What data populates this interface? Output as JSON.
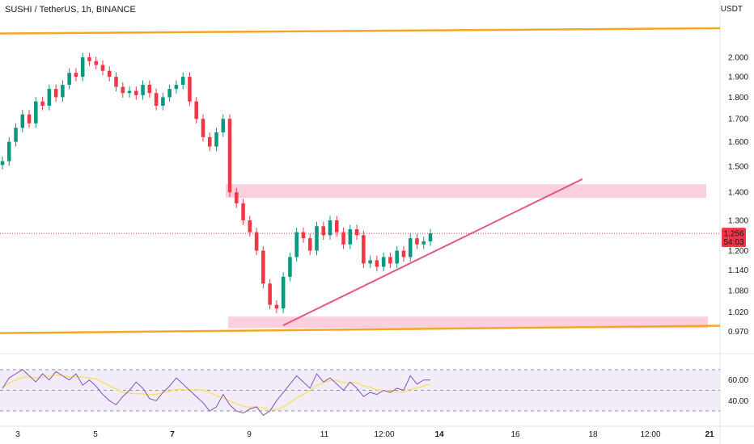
{
  "header": {
    "title": "SUSHI / TetherUS, 1h, BINANCE",
    "unit": "USDT"
  },
  "price_tag": {
    "price": "1.256",
    "countdown": "54:03",
    "color": "#f23645"
  },
  "colors": {
    "up": "#089981",
    "down": "#f23645",
    "channel": "#f5a623",
    "zone": "#f8bbd0",
    "trendline": "#e5568a",
    "rsi_line": "#7e57c2",
    "rsi_ma": "#f7e36e",
    "rsi_band": "#ede7f6"
  },
  "chart_data": [
    {
      "type": "line",
      "title": "SUSHI / TetherUS, 1h, BINANCE",
      "ylabel": "USDT",
      "y_scale": "log",
      "y_ticks": [
        "2.000",
        "1.900",
        "1.800",
        "1.700",
        "1.600",
        "1.500",
        "1.400",
        "1.300",
        "1.200",
        "1.140",
        "1.080",
        "1.020",
        "0.970"
      ],
      "x_ticks": [
        "3",
        "5",
        "7",
        "9",
        "11",
        "12:00",
        "14",
        "16",
        "18",
        "12:00",
        "21"
      ],
      "last_price": 1.256,
      "series": [
        {
          "name": "",
          "type": "candlestick-close",
          "x": [
            "2 20:00",
            "3 00:00",
            "3 04:00",
            "3 08:00",
            "3 12:00",
            "3 16:00",
            "3 20:00",
            "4 00:00",
            "4 04:00",
            "4 08:00",
            "4 12:00",
            "4 16:00",
            "4 20:00",
            "5 00:00",
            "5 04:00",
            "5 08:00",
            "5 12:00",
            "5 16:00",
            "5 20:00",
            "6 00:00",
            "6 04:00",
            "6 08:00",
            "6 12:00",
            "6 16:00",
            "6 20:00",
            "7 00:00",
            "7 04:00",
            "7 08:00",
            "7 12:00",
            "7 16:00",
            "7 20:00",
            "8 00:00",
            "8 04:00",
            "8 08:00",
            "8 12:00",
            "8 16:00",
            "8 20:00",
            "9 00:00",
            "9 04:00",
            "9 08:00",
            "9 12:00",
            "9 16:00",
            "9 20:00",
            "10 00:00",
            "10 04:00",
            "10 08:00",
            "10 12:00",
            "10 16:00",
            "10 20:00",
            "11 00:00",
            "11 04:00",
            "11 08:00",
            "11 12:00",
            "11 16:00",
            "11 20:00",
            "12 00:00",
            "12 04:00",
            "12 08:00",
            "12 12:00",
            "12 16:00",
            "12 20:00",
            "13 00:00",
            "13 04:00",
            "13 08:00",
            "13 12:00"
          ],
          "values": [
            1.52,
            1.6,
            1.66,
            1.72,
            1.68,
            1.78,
            1.76,
            1.84,
            1.8,
            1.86,
            1.92,
            1.9,
            2.0,
            1.98,
            1.96,
            1.93,
            1.9,
            1.85,
            1.82,
            1.83,
            1.81,
            1.86,
            1.82,
            1.76,
            1.8,
            1.84,
            1.86,
            1.9,
            1.78,
            1.7,
            1.62,
            1.58,
            1.64,
            1.7,
            1.4,
            1.36,
            1.3,
            1.26,
            1.2,
            1.1,
            1.04,
            1.03,
            1.12,
            1.18,
            1.26,
            1.24,
            1.2,
            1.28,
            1.25,
            1.3,
            1.26,
            1.22,
            1.27,
            1.25,
            1.16,
            1.17,
            1.15,
            1.18,
            1.16,
            1.2,
            1.18,
            1.24,
            1.22,
            1.23,
            1.256
          ]
        },
        {
          "name": "",
          "type": "rsi",
          "values": [
            52,
            62,
            66,
            70,
            64,
            58,
            66,
            60,
            68,
            64,
            60,
            66,
            55,
            60,
            54,
            46,
            40,
            36,
            44,
            50,
            58,
            52,
            42,
            40,
            48,
            54,
            62,
            56,
            50,
            44,
            38,
            30,
            34,
            46,
            36,
            30,
            28,
            32,
            34,
            26,
            30,
            40,
            48,
            56,
            64,
            58,
            52,
            66,
            58,
            62,
            56,
            50,
            58,
            52,
            44,
            48,
            46,
            50,
            48,
            52,
            50,
            64,
            56,
            60,
            60
          ]
        }
      ],
      "levels": {
        "resistance_zone": [
          1.38,
          1.43
        ],
        "support_zone": [
          0.978,
          1.008
        ],
        "channel_upper": {
          "start": 2.13,
          "end": 2.16
        },
        "channel_lower": {
          "start": 0.965,
          "end": 0.984
        },
        "trendline": {
          "start": 0.985,
          "end": 1.45
        }
      }
    },
    {
      "type": "line",
      "title": "",
      "ylabel": "",
      "y_ticks": [
        "60.00",
        "40.00"
      ],
      "ylim": [
        20,
        80
      ],
      "band": [
        30,
        70
      ]
    }
  ]
}
